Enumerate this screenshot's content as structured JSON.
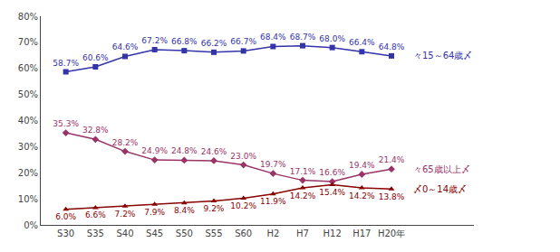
{
  "chart_data": {
    "type": "line",
    "categories": [
      "S30",
      "S35",
      "S40",
      "S45",
      "S50",
      "S55",
      "S60",
      "H2",
      "H7",
      "H12",
      "H17",
      "H20年"
    ],
    "series": [
      {
        "name": "々15～64歳〆",
        "color": "#3333aa",
        "marker": "square",
        "values": [
          58.7,
          60.6,
          64.6,
          67.2,
          66.8,
          66.2,
          66.7,
          68.4,
          68.7,
          68.0,
          66.4,
          64.8
        ],
        "value_labels": [
          "58.7%",
          "60.6%",
          "64.6%",
          "67.2%",
          "66.8%",
          "66.2%",
          "66.7%",
          "68.4%",
          "68.7%",
          "68.0%",
          "66.4%",
          "64.8%"
        ]
      },
      {
        "name": "々65歳以上〆",
        "color": "#993366",
        "marker": "diamond",
        "values": [
          35.3,
          32.8,
          28.2,
          24.9,
          24.8,
          24.6,
          23.0,
          19.7,
          17.1,
          16.6,
          19.4,
          21.4
        ],
        "value_labels": [
          "35.3%",
          "32.8%",
          "28.2%",
          "24.9%",
          "24.8%",
          "24.6%",
          "23.0%",
          "19.7%",
          "17.1%",
          "16.6%",
          "19.4%",
          "21.4%"
        ]
      },
      {
        "name": "〆0～14歳〆",
        "color": "#880000",
        "marker": "triangle",
        "values": [
          6.0,
          6.6,
          7.2,
          7.9,
          8.4,
          9.2,
          10.2,
          11.9,
          14.2,
          15.4,
          14.2,
          13.8
        ],
        "value_labels": [
          "6.0%",
          "6.6%",
          "7.2%",
          "7.9%",
          "8.4%",
          "9.2%",
          "10.2%",
          "11.9%",
          "14.2%",
          "15.4%",
          "14.2%",
          "13.8%"
        ]
      }
    ],
    "ylim": [
      0,
      80
    ],
    "yticks": [
      {
        "value": 0,
        "label": "0%"
      },
      {
        "value": 10,
        "label": "10%"
      },
      {
        "value": 20,
        "label": "20%"
      },
      {
        "value": 30,
        "label": "30%"
      },
      {
        "value": 40,
        "label": "40%"
      },
      {
        "value": 50,
        "label": "50%"
      },
      {
        "value": 60,
        "label": "60%"
      },
      {
        "value": 70,
        "label": "70%"
      },
      {
        "value": 80,
        "label": "80%"
      }
    ],
    "grid": false,
    "data_labels": true
  }
}
